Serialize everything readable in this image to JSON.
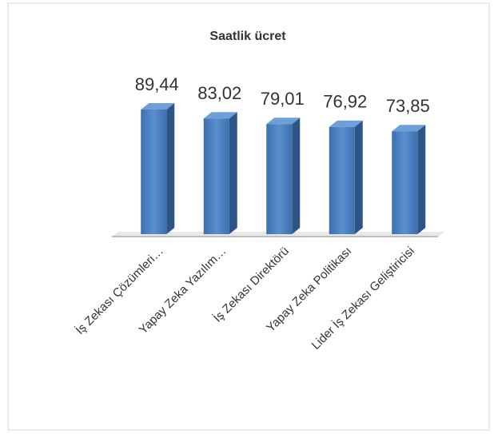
{
  "chart_data": {
    "type": "bar3d",
    "title": "Saatlik ücret",
    "categories": [
      "İş Zekası Çözümleri…",
      "Yapay Zeka Yazılım…",
      "İş Zekası Direktörü",
      "Yapay Zeka Politikası",
      "Lider İş Zekası Geliştiricisi"
    ],
    "values": [
      89.44,
      83.02,
      79.01,
      76.92,
      73.85
    ],
    "value_labels": [
      "89,44",
      "83,02",
      "79,01",
      "76,92",
      "73,85"
    ],
    "color": "#4a7ebb"
  }
}
